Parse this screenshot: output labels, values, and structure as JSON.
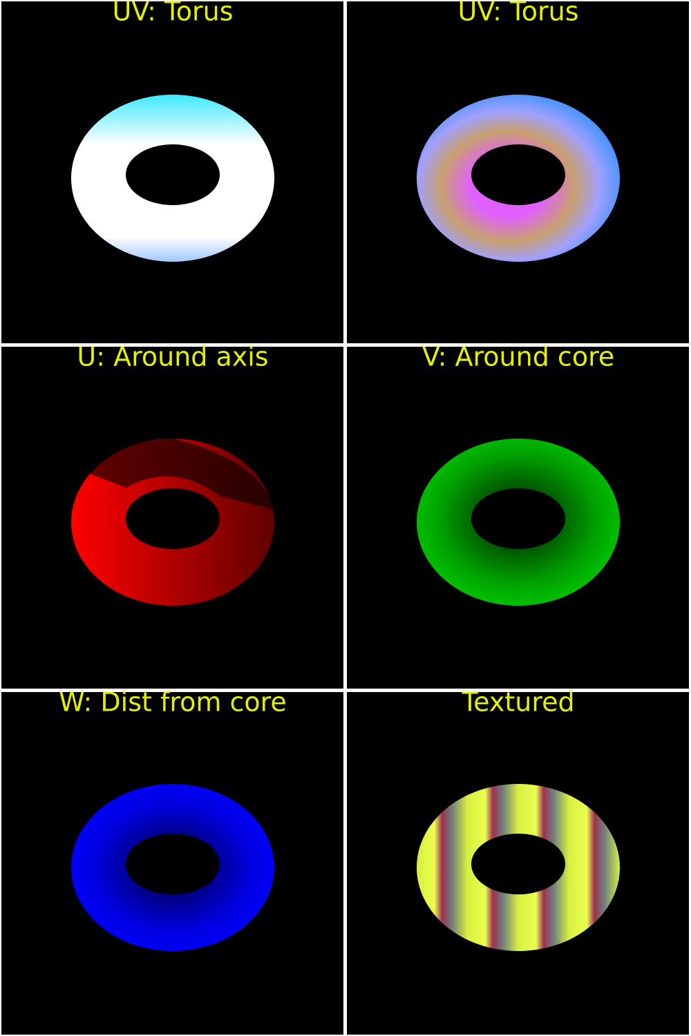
{
  "panels": [
    {
      "title": "UV: Torus"
    },
    {
      "title": "UV: Torus"
    },
    {
      "title": "U: Around axis"
    },
    {
      "title": "V: Around core"
    },
    {
      "title": "W: Dist from core"
    },
    {
      "title": "Textured"
    }
  ]
}
